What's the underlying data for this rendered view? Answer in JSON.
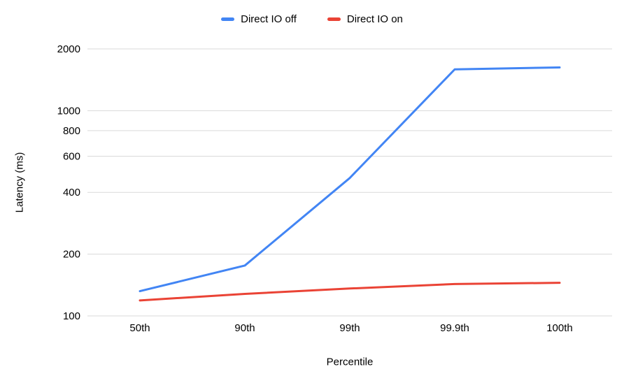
{
  "chart_data": {
    "type": "line",
    "title": "",
    "xlabel": "Percentile",
    "ylabel": "Latency (ms)",
    "categories": [
      "50th",
      "90th",
      "99th",
      "99.9th",
      "100th"
    ],
    "series": [
      {
        "name": "Direct IO off",
        "color": "#4285F4",
        "values": [
          132,
          176,
          470,
          1590,
          1625
        ]
      },
      {
        "name": "Direct IO on",
        "color": "#EA4335",
        "values": [
          119,
          128,
          136,
          143,
          145
        ]
      }
    ],
    "y_scale": "log",
    "y_ticks": [
      100,
      200,
      400,
      600,
      800,
      1000,
      2000
    ],
    "ylim": [
      100,
      2000
    ],
    "grid": true,
    "legend_position": "top",
    "line_width": 3,
    "gridline_color": "#d9d9d9",
    "text_color": "#000000",
    "background_color": "#ffffff"
  }
}
